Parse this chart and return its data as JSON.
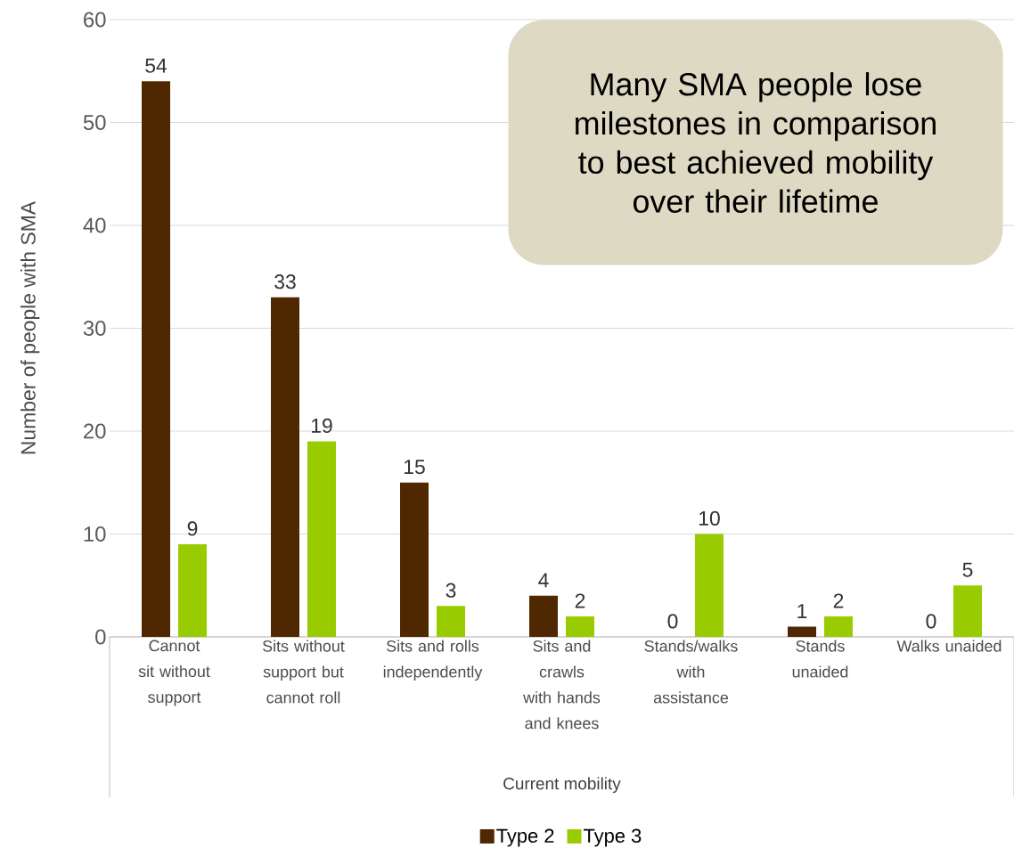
{
  "chart_data": {
    "type": "bar",
    "xlabel": "Current mobility",
    "ylabel": "Number of people with SMA",
    "categories": [
      "Cannot sit without support",
      "Sits without support but cannot roll",
      "Sits and rolls independently",
      "Sits and crawls with hands and knees",
      "Stands/walks with assistance",
      "Stands unaided",
      "Walks unaided"
    ],
    "series": [
      {
        "name": "Type 2",
        "color": "#4f2700",
        "values": [
          54,
          33,
          15,
          4,
          0,
          1,
          0
        ]
      },
      {
        "name": "Type 3",
        "color": "#99cc00",
        "values": [
          9,
          19,
          3,
          2,
          10,
          2,
          5
        ]
      }
    ],
    "ylim": [
      0,
      60
    ],
    "yticks": [
      0,
      10,
      20,
      30,
      40,
      50,
      60
    ],
    "grid": "y",
    "legend": "bottom",
    "data_labels": true,
    "annotations": [
      "Many SMA people lose milestones in comparison to best achieved mobility over their lifetime"
    ]
  }
}
